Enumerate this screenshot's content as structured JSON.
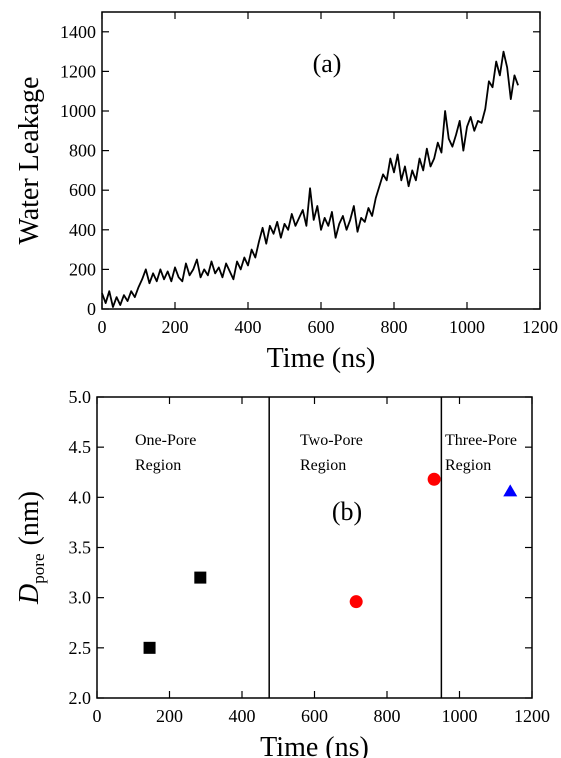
{
  "chart_data": [
    {
      "type": "line",
      "xlabel": "Time (ns)",
      "ylabel": "Water Leakage",
      "annotations": [
        "(a)"
      ],
      "xlim": [
        0,
        1200
      ],
      "xticks": [
        0,
        200,
        400,
        600,
        800,
        1000,
        1200
      ],
      "ylim": [
        0,
        1500
      ],
      "yticks": [
        0,
        200,
        400,
        600,
        800,
        1000,
        1200,
        1400
      ],
      "x": [
        0,
        10,
        20,
        30,
        40,
        50,
        60,
        70,
        80,
        90,
        100,
        110,
        120,
        130,
        140,
        150,
        160,
        170,
        180,
        190,
        200,
        210,
        220,
        230,
        240,
        250,
        260,
        270,
        280,
        290,
        300,
        310,
        320,
        330,
        340,
        350,
        360,
        370,
        380,
        390,
        400,
        410,
        420,
        430,
        440,
        450,
        460,
        470,
        480,
        490,
        500,
        510,
        520,
        530,
        540,
        550,
        560,
        570,
        580,
        590,
        600,
        610,
        620,
        630,
        640,
        650,
        660,
        670,
        680,
        690,
        700,
        710,
        720,
        730,
        740,
        750,
        760,
        770,
        780,
        790,
        800,
        810,
        820,
        830,
        840,
        850,
        860,
        870,
        880,
        890,
        900,
        910,
        920,
        930,
        940,
        950,
        960,
        970,
        980,
        990,
        1000,
        1010,
        1020,
        1030,
        1040,
        1050,
        1060,
        1070,
        1080,
        1090,
        1100,
        1110,
        1120,
        1130,
        1140
      ],
      "series": [
        {
          "color": "#000000",
          "values": [
            80,
            30,
            90,
            10,
            60,
            20,
            70,
            40,
            90,
            60,
            110,
            150,
            200,
            130,
            180,
            140,
            200,
            150,
            190,
            140,
            210,
            160,
            140,
            230,
            170,
            200,
            250,
            160,
            200,
            170,
            240,
            180,
            210,
            160,
            230,
            190,
            150,
            240,
            200,
            260,
            220,
            300,
            260,
            340,
            410,
            330,
            420,
            380,
            440,
            360,
            430,
            400,
            480,
            420,
            460,
            500,
            420,
            610,
            450,
            520,
            400,
            460,
            420,
            490,
            360,
            430,
            470,
            400,
            450,
            520,
            390,
            460,
            440,
            510,
            470,
            560,
            620,
            680,
            650,
            760,
            690,
            780,
            650,
            720,
            620,
            700,
            650,
            760,
            700,
            810,
            720,
            760,
            840,
            790,
            1000,
            860,
            820,
            880,
            950,
            800,
            920,
            970,
            900,
            950,
            940,
            1010,
            1150,
            1120,
            1250,
            1180,
            1300,
            1220,
            1060,
            1180,
            1130
          ]
        }
      ]
    },
    {
      "type": "scatter",
      "xlabel": "Time (ns)",
      "ylabel": "D",
      "ylabel_sub": "pore",
      "ylabel_unit": "(nm)",
      "annotations": [
        "(b)"
      ],
      "regions": [
        [
          "One-Pore",
          "Region"
        ],
        [
          "Two-Pore",
          "Region"
        ],
        [
          "Three-Pore",
          "Region"
        ]
      ],
      "vlines": [
        475,
        950
      ],
      "xlim": [
        0,
        1200
      ],
      "xticks": [
        0,
        200,
        400,
        600,
        800,
        1000,
        1200
      ],
      "ylim": [
        2,
        5
      ],
      "yticks": [
        {
          "value": 2,
          "label": "2.0"
        },
        2.5,
        {
          "value": 3,
          "label": "3.0"
        },
        3.5,
        {
          "value": 4,
          "label": "4.0"
        },
        4.5,
        {
          "value": 5,
          "label": "5.0"
        }
      ],
      "series": [
        {
          "marker": "square",
          "color": "#000000",
          "x": [
            145,
            285
          ],
          "values": [
            2.5,
            3.2
          ]
        },
        {
          "marker": "circle",
          "color": "#ff0000",
          "x": [
            715,
            930
          ],
          "values": [
            2.96,
            4.18
          ]
        },
        {
          "marker": "triangle",
          "color": "#0000ff",
          "x": [
            1140
          ],
          "values": [
            4.06
          ]
        }
      ]
    }
  ]
}
